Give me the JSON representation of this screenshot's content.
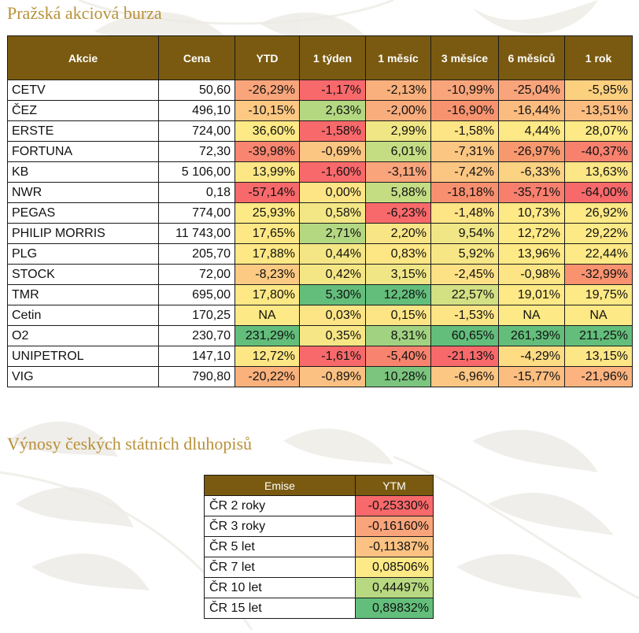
{
  "colors": {
    "header_bg": "#7a5a10",
    "title": "#b8913a",
    "red": "#f8696b",
    "orange": "#f8a77a",
    "yellow": "#fbe584",
    "light_green": "#c2dd82",
    "green": "#63be7b"
  },
  "stocks": {
    "title": "Pražská akciová burza",
    "headers": [
      "Akcie",
      "Cena",
      "YTD",
      "1 týden",
      "1 měsíc",
      "3 měsíce",
      "6 měsíců",
      "1 rok"
    ],
    "rows": [
      {
        "name": "CETV",
        "price": "50,60",
        "cells": [
          {
            "v": "-26,29%",
            "c": "#f9a57b"
          },
          {
            "v": "-1,17%",
            "c": "#f8696b"
          },
          {
            "v": "-2,13%",
            "c": "#f9b07c"
          },
          {
            "v": "-10,99%",
            "c": "#f9a57b"
          },
          {
            "v": "-25,04%",
            "c": "#f9a47b"
          },
          {
            "v": "-5,95%",
            "c": "#fbd07f"
          }
        ]
      },
      {
        "name": "ČEZ",
        "price": "496,10",
        "cells": [
          {
            "v": "-10,15%",
            "c": "#fcc883"
          },
          {
            "v": "2,63%",
            "c": "#b4d882"
          },
          {
            "v": "-2,00%",
            "c": "#f9ac7c"
          },
          {
            "v": "-16,90%",
            "c": "#f8936f"
          },
          {
            "v": "-16,44%",
            "c": "#fbbc80"
          },
          {
            "v": "-13,51%",
            "c": "#fbbd80"
          }
        ]
      },
      {
        "name": "ERSTE",
        "price": "724,00",
        "cells": [
          {
            "v": "36,60%",
            "c": "#fde985"
          },
          {
            "v": "-1,58%",
            "c": "#f8696b"
          },
          {
            "v": "2,99%",
            "c": "#f1e685"
          },
          {
            "v": "-1,58%",
            "c": "#fde485"
          },
          {
            "v": "4,44%",
            "c": "#fde985"
          },
          {
            "v": "28,07%",
            "c": "#fde985"
          }
        ]
      },
      {
        "name": "FORTUNA",
        "price": "72,30",
        "cells": [
          {
            "v": "-39,98%",
            "c": "#f8856f"
          },
          {
            "v": "-0,69%",
            "c": "#fbc582"
          },
          {
            "v": "6,01%",
            "c": "#c4dd83"
          },
          {
            "v": "-7,31%",
            "c": "#fbc582"
          },
          {
            "v": "-26,97%",
            "c": "#f8986f"
          },
          {
            "v": "-40,37%",
            "c": "#f8816e"
          }
        ]
      },
      {
        "name": "KB",
        "price": "5 106,00",
        "cells": [
          {
            "v": "13,99%",
            "c": "#fde785"
          },
          {
            "v": "-1,60%",
            "c": "#f8696b"
          },
          {
            "v": "-3,11%",
            "c": "#f9a47b"
          },
          {
            "v": "-7,42%",
            "c": "#fbc582"
          },
          {
            "v": "-6,33%",
            "c": "#fcd283"
          },
          {
            "v": "13,63%",
            "c": "#fde685"
          }
        ]
      },
      {
        "name": "NWR",
        "price": "0,18",
        "cells": [
          {
            "v": "-57,14%",
            "c": "#f8696b"
          },
          {
            "v": "0,00%",
            "c": "#fde585"
          },
          {
            "v": "5,88%",
            "c": "#c4dd83"
          },
          {
            "v": "-18,18%",
            "c": "#f88f6f"
          },
          {
            "v": "-35,71%",
            "c": "#f87f6e"
          },
          {
            "v": "-64,00%",
            "c": "#f8696b"
          }
        ]
      },
      {
        "name": "PEGAS",
        "price": "774,00",
        "cells": [
          {
            "v": "25,93%",
            "c": "#fde985"
          },
          {
            "v": "0,58%",
            "c": "#f3e685"
          },
          {
            "v": "-6,23%",
            "c": "#f8696b"
          },
          {
            "v": "-1,48%",
            "c": "#fde485"
          },
          {
            "v": "10,73%",
            "c": "#fde985"
          },
          {
            "v": "26,92%",
            "c": "#fde985"
          }
        ]
      },
      {
        "name": "PHILIP MORRIS",
        "price": "11 743,00",
        "cells": [
          {
            "v": "17,65%",
            "c": "#fde885"
          },
          {
            "v": "2,71%",
            "c": "#b4d882"
          },
          {
            "v": "2,20%",
            "c": "#f8e585"
          },
          {
            "v": "9,54%",
            "c": "#f0e685"
          },
          {
            "v": "12,72%",
            "c": "#fde985"
          },
          {
            "v": "29,22%",
            "c": "#fde985"
          }
        ]
      },
      {
        "name": "PLG",
        "price": "205,70",
        "cells": [
          {
            "v": "17,88%",
            "c": "#fde885"
          },
          {
            "v": "0,44%",
            "c": "#f5e685"
          },
          {
            "v": "0,83%",
            "c": "#fde785"
          },
          {
            "v": "5,92%",
            "c": "#f6e685"
          },
          {
            "v": "13,96%",
            "c": "#fde985"
          },
          {
            "v": "22,44%",
            "c": "#fde985"
          }
        ]
      },
      {
        "name": "STOCK",
        "price": "72,00",
        "cells": [
          {
            "v": "-8,23%",
            "c": "#fcca83"
          },
          {
            "v": "0,42%",
            "c": "#f5e685"
          },
          {
            "v": "3,15%",
            "c": "#f0e685"
          },
          {
            "v": "-2,45%",
            "c": "#fde185"
          },
          {
            "v": "-0,98%",
            "c": "#fde485"
          },
          {
            "v": "-32,99%",
            "c": "#f8926f"
          }
        ]
      },
      {
        "name": "TMR",
        "price": "695,00",
        "cells": [
          {
            "v": "17,80%",
            "c": "#fde885"
          },
          {
            "v": "5,30%",
            "c": "#63be7b"
          },
          {
            "v": "12,28%",
            "c": "#63be7b"
          },
          {
            "v": "22,57%",
            "c": "#d3e083"
          },
          {
            "v": "19,01%",
            "c": "#fde985"
          },
          {
            "v": "19,75%",
            "c": "#fde985"
          }
        ]
      },
      {
        "name": "Cetin",
        "price": "170,25",
        "cells": [
          {
            "v": "NA",
            "c": "#fde985",
            "na": true
          },
          {
            "v": "0,03%",
            "c": "#fde585"
          },
          {
            "v": "0,15%",
            "c": "#fde585"
          },
          {
            "v": "-1,53%",
            "c": "#fde485"
          },
          {
            "v": "NA",
            "c": "#fde985",
            "na": true
          },
          {
            "v": "NA",
            "c": "#fde985",
            "na": true
          }
        ]
      },
      {
        "name": "O2",
        "price": "230,70",
        "cells": [
          {
            "v": "231,29%",
            "c": "#63be7b"
          },
          {
            "v": "0,35%",
            "c": "#f6e685"
          },
          {
            "v": "8,31%",
            "c": "#a1d281"
          },
          {
            "v": "60,65%",
            "c": "#63be7b"
          },
          {
            "v": "261,39%",
            "c": "#63be7b"
          },
          {
            "v": "211,25%",
            "c": "#63be7b"
          }
        ]
      },
      {
        "name": "UNIPETROL",
        "price": "147,10",
        "cells": [
          {
            "v": "12,72%",
            "c": "#fde785"
          },
          {
            "v": "-1,61%",
            "c": "#f8696b"
          },
          {
            "v": "-5,40%",
            "c": "#f8836e"
          },
          {
            "v": "-21,13%",
            "c": "#f8696b"
          },
          {
            "v": "-4,29%",
            "c": "#fddc84"
          },
          {
            "v": "13,15%",
            "c": "#fde685"
          }
        ]
      },
      {
        "name": "VIG",
        "price": "790,80",
        "cells": [
          {
            "v": "-20,22%",
            "c": "#fab17c"
          },
          {
            "v": "-0,89%",
            "c": "#fbc182"
          },
          {
            "v": "10,28%",
            "c": "#7bc57e"
          },
          {
            "v": "-6,96%",
            "c": "#fcc683"
          },
          {
            "v": "-15,77%",
            "c": "#fbbd80"
          },
          {
            "v": "-21,96%",
            "c": "#fcb37f"
          }
        ]
      }
    ]
  },
  "bonds": {
    "title": "Výnosy českých státních dluhopisů",
    "headers": [
      "Emise",
      "YTM"
    ],
    "rows": [
      {
        "name": "ČR 2 roky",
        "v": "-0,25330%",
        "c": "#f8696b"
      },
      {
        "name": "ČR 3 roky",
        "v": "-0,16160%",
        "c": "#f9a47b"
      },
      {
        "name": "ČR 5 let",
        "v": "-0,11387%",
        "c": "#fbc283"
      },
      {
        "name": "ČR 7 let",
        "v": "0,08506%",
        "c": "#fde985"
      },
      {
        "name": "ČR 10 let",
        "v": "0,44497%",
        "c": "#b8d982"
      },
      {
        "name": "ČR 15 let",
        "v": "0,89832%",
        "c": "#63be7b"
      }
    ]
  }
}
